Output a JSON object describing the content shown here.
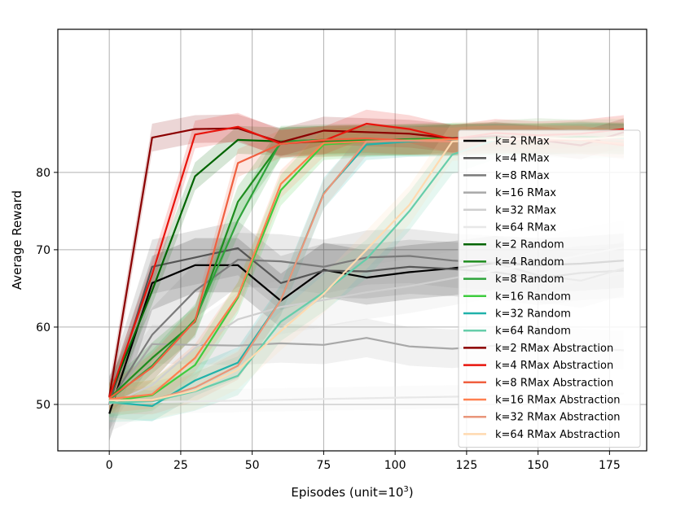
{
  "chart_data": {
    "type": "line",
    "title": "",
    "xlabel": "Episodes (unit=10",
    "xlabel_sup": "3",
    "xlabel_suffix": ")",
    "ylabel": "Average Reward",
    "xlim": [
      -18,
      188
    ],
    "ylim": [
      44,
      98.5
    ],
    "xticks": [
      0,
      25,
      50,
      75,
      100,
      125,
      150,
      175
    ],
    "xtick_labels": [
      "0",
      "25",
      "50",
      "75",
      "100",
      "125",
      "150",
      "175"
    ],
    "yticks": [
      50,
      60,
      70,
      80
    ],
    "ytick_labels": [
      "50",
      "60",
      "70",
      "80"
    ],
    "grid": true,
    "legend_position": "center-right",
    "x": [
      0,
      15,
      30,
      45,
      60,
      75,
      90,
      105,
      120,
      135,
      150,
      165,
      180
    ],
    "series": [
      {
        "name": "k=2 RMax",
        "color": "#000000",
        "band": 3.5,
        "values": [
          48.8,
          65.7,
          68.0,
          68.0,
          63.4,
          67.4,
          66.4,
          67.1,
          67.6,
          68.3,
          68.0,
          68.2,
          68.6
        ]
      },
      {
        "name": "k=4 RMax",
        "color": "#555555",
        "band": 3.5,
        "values": [
          50.0,
          67.8,
          69.0,
          70.2,
          65.7,
          67.3,
          67.2,
          67.8,
          67.5,
          67.1,
          66.3,
          67.0,
          67.3
        ]
      },
      {
        "name": "k=8 RMax",
        "color": "#7a7a7a",
        "band": 3.5,
        "values": [
          50.2,
          59.0,
          64.7,
          68.7,
          68.5,
          67.8,
          69.0,
          69.2,
          68.6,
          68.3,
          66.7,
          66.0,
          67.6
        ]
      },
      {
        "name": "k=16 RMax",
        "color": "#a8a8a8",
        "band": 2.5,
        "values": [
          50.1,
          57.8,
          57.7,
          57.6,
          57.9,
          57.7,
          58.6,
          57.5,
          57.2,
          57.6,
          57.4,
          57.3,
          57.0
        ]
      },
      {
        "name": "k=32 RMax",
        "color": "#cfcfcf",
        "band": 3.5,
        "values": [
          50.0,
          52.5,
          57.3,
          61.0,
          62.6,
          63.5,
          64.5,
          65.3,
          66.3,
          67.3,
          68.2,
          69.3,
          70.3
        ]
      },
      {
        "name": "k=64 RMax",
        "color": "#e8e8e8",
        "band": 1.5,
        "values": [
          50.2,
          50.3,
          50.4,
          50.5,
          50.6,
          50.7,
          50.8,
          50.9,
          51.0,
          51.1,
          51.2,
          51.3,
          51.4
        ]
      },
      {
        "name": "k=2 Random",
        "color": "#006400",
        "band": 1.8,
        "values": [
          51.0,
          64.7,
          79.5,
          84.2,
          84.0,
          84.2,
          84.3,
          84.1,
          84.4,
          84.5,
          84.3,
          84.4,
          84.5
        ]
      },
      {
        "name": "k=4 Random",
        "color": "#1e8c1e",
        "band": 2.0,
        "values": [
          50.8,
          56.0,
          60.7,
          76.2,
          83.8,
          84.0,
          84.1,
          84.3,
          84.4,
          84.5,
          84.3,
          84.6,
          84.4
        ]
      },
      {
        "name": "k=8 Random",
        "color": "#2ea33a",
        "band": 2.0,
        "values": [
          50.6,
          55.0,
          61.0,
          73.8,
          84.0,
          84.2,
          84.3,
          84.1,
          84.2,
          84.4,
          84.3,
          84.5,
          84.3
        ]
      },
      {
        "name": "k=16 Random",
        "color": "#3ecc3e",
        "band": 2.0,
        "values": [
          50.4,
          51.2,
          55.1,
          63.8,
          77.7,
          83.6,
          84.0,
          84.2,
          84.3,
          84.2,
          84.4,
          84.3,
          84.5
        ]
      },
      {
        "name": "k=32 Random",
        "color": "#20b2aa",
        "band": 2.0,
        "values": [
          50.3,
          49.8,
          53.1,
          55.4,
          63.5,
          77.3,
          83.6,
          84.0,
          84.1,
          84.3,
          84.2,
          84.4,
          84.3
        ]
      },
      {
        "name": "k=64 Random",
        "color": "#66cdaa",
        "band": 2.5,
        "values": [
          50.2,
          50.4,
          51.7,
          53.7,
          60.7,
          64.5,
          68.8,
          75.0,
          82.3,
          84.2,
          84.5,
          84.3,
          84.4
        ]
      },
      {
        "name": "k=2 RMax Abstraction",
        "color": "#8b0000",
        "band": 1.8,
        "values": [
          51.0,
          84.5,
          85.6,
          85.7,
          83.9,
          85.4,
          85.2,
          85.0,
          84.4,
          84.7,
          84.2,
          83.5,
          85.2
        ]
      },
      {
        "name": "k=4 RMax Abstraction",
        "color": "#e8140c",
        "band": 1.8,
        "values": [
          50.9,
          66.8,
          84.9,
          85.9,
          83.7,
          84.1,
          86.3,
          85.6,
          84.3,
          85.1,
          84.8,
          85.0,
          85.6
        ]
      },
      {
        "name": "k=8 RMax Abstraction",
        "color": "#f06040",
        "band": 1.8,
        "values": [
          50.8,
          54.8,
          60.8,
          81.2,
          83.7,
          84.2,
          84.4,
          84.1,
          84.0,
          84.3,
          84.1,
          84.2,
          83.5
        ]
      },
      {
        "name": "k=16 RMax Abstraction",
        "color": "#ff8050",
        "band": 1.8,
        "values": [
          50.7,
          51.3,
          56.0,
          64.0,
          78.5,
          83.8,
          84.0,
          84.1,
          84.3,
          84.2,
          84.4,
          84.2,
          83.7
        ]
      },
      {
        "name": "k=32 RMax Abstraction",
        "color": "#e9967a",
        "band": 1.8,
        "values": [
          50.6,
          50.5,
          52.2,
          55.0,
          63.5,
          77.2,
          84.0,
          84.1,
          84.0,
          84.3,
          84.2,
          84.4,
          84.2
        ]
      },
      {
        "name": "k=64 RMax Abstraction",
        "color": "#ffdab0",
        "band": 2.5,
        "values": [
          50.5,
          50.6,
          51.8,
          54.5,
          59.5,
          64.3,
          70.0,
          75.8,
          84.0,
          84.2,
          84.5,
          84.3,
          84.6
        ]
      }
    ]
  }
}
